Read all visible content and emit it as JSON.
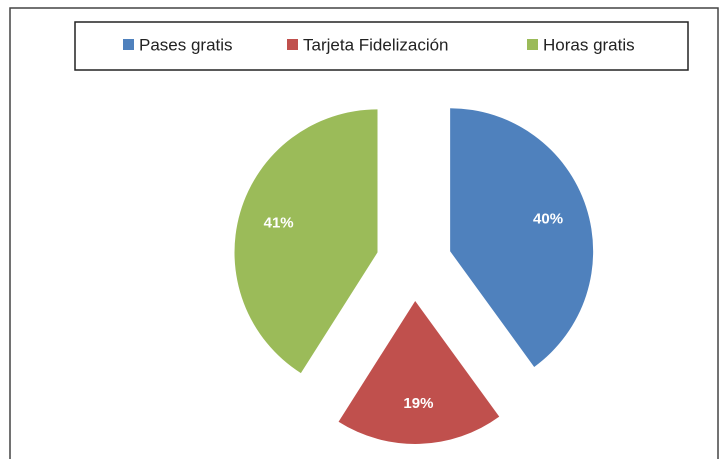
{
  "chart_data": {
    "type": "pie",
    "exploded": true,
    "categories": [
      "Pases gratis",
      "Tarjeta Fidelización",
      "Horas gratis"
    ],
    "values": [
      40,
      19,
      41
    ],
    "value_labels": [
      "40%",
      "19%",
      "41%"
    ],
    "colors": [
      "#4f81bd",
      "#c0504d",
      "#9bbb59"
    ],
    "legend": "top"
  }
}
